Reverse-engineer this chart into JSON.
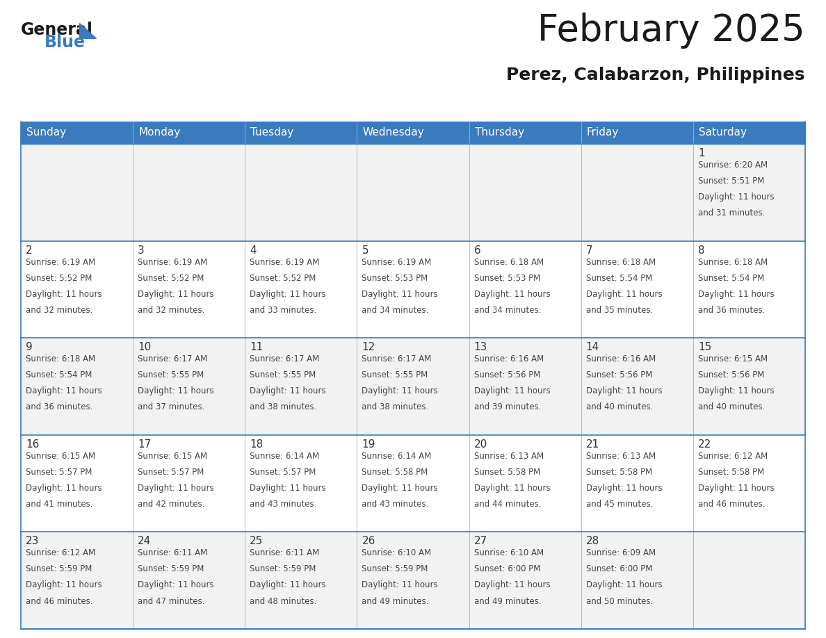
{
  "title": "February 2025",
  "subtitle": "Perez, Calabarzon, Philippines",
  "header_bg": "#3a7bbf",
  "header_text": "#ffffff",
  "day_names": [
    "Sunday",
    "Monday",
    "Tuesday",
    "Wednesday",
    "Thursday",
    "Friday",
    "Saturday"
  ],
  "row_bg_light": "#f2f2f2",
  "row_bg_white": "#ffffff",
  "border_color": "#3a7bbf",
  "cell_border_color": "#cccccc",
  "text_color": "#444444",
  "day_num_color": "#333333",
  "calendar_data": [
    [
      null,
      null,
      null,
      null,
      null,
      null,
      {
        "day": "1",
        "sunrise": "6:20 AM",
        "sunset": "5:51 PM",
        "daylight": "11 hours",
        "daylight2": "and 31 minutes."
      }
    ],
    [
      {
        "day": "2",
        "sunrise": "6:19 AM",
        "sunset": "5:52 PM",
        "daylight": "11 hours",
        "daylight2": "and 32 minutes."
      },
      {
        "day": "3",
        "sunrise": "6:19 AM",
        "sunset": "5:52 PM",
        "daylight": "11 hours",
        "daylight2": "and 32 minutes."
      },
      {
        "day": "4",
        "sunrise": "6:19 AM",
        "sunset": "5:52 PM",
        "daylight": "11 hours",
        "daylight2": "and 33 minutes."
      },
      {
        "day": "5",
        "sunrise": "6:19 AM",
        "sunset": "5:53 PM",
        "daylight": "11 hours",
        "daylight2": "and 34 minutes."
      },
      {
        "day": "6",
        "sunrise": "6:18 AM",
        "sunset": "5:53 PM",
        "daylight": "11 hours",
        "daylight2": "and 34 minutes."
      },
      {
        "day": "7",
        "sunrise": "6:18 AM",
        "sunset": "5:54 PM",
        "daylight": "11 hours",
        "daylight2": "and 35 minutes."
      },
      {
        "day": "8",
        "sunrise": "6:18 AM",
        "sunset": "5:54 PM",
        "daylight": "11 hours",
        "daylight2": "and 36 minutes."
      }
    ],
    [
      {
        "day": "9",
        "sunrise": "6:18 AM",
        "sunset": "5:54 PM",
        "daylight": "11 hours",
        "daylight2": "and 36 minutes."
      },
      {
        "day": "10",
        "sunrise": "6:17 AM",
        "sunset": "5:55 PM",
        "daylight": "11 hours",
        "daylight2": "and 37 minutes."
      },
      {
        "day": "11",
        "sunrise": "6:17 AM",
        "sunset": "5:55 PM",
        "daylight": "11 hours",
        "daylight2": "and 38 minutes."
      },
      {
        "day": "12",
        "sunrise": "6:17 AM",
        "sunset": "5:55 PM",
        "daylight": "11 hours",
        "daylight2": "and 38 minutes."
      },
      {
        "day": "13",
        "sunrise": "6:16 AM",
        "sunset": "5:56 PM",
        "daylight": "11 hours",
        "daylight2": "and 39 minutes."
      },
      {
        "day": "14",
        "sunrise": "6:16 AM",
        "sunset": "5:56 PM",
        "daylight": "11 hours",
        "daylight2": "and 40 minutes."
      },
      {
        "day": "15",
        "sunrise": "6:15 AM",
        "sunset": "5:56 PM",
        "daylight": "11 hours",
        "daylight2": "and 40 minutes."
      }
    ],
    [
      {
        "day": "16",
        "sunrise": "6:15 AM",
        "sunset": "5:57 PM",
        "daylight": "11 hours",
        "daylight2": "and 41 minutes."
      },
      {
        "day": "17",
        "sunrise": "6:15 AM",
        "sunset": "5:57 PM",
        "daylight": "11 hours",
        "daylight2": "and 42 minutes."
      },
      {
        "day": "18",
        "sunrise": "6:14 AM",
        "sunset": "5:57 PM",
        "daylight": "11 hours",
        "daylight2": "and 43 minutes."
      },
      {
        "day": "19",
        "sunrise": "6:14 AM",
        "sunset": "5:58 PM",
        "daylight": "11 hours",
        "daylight2": "and 43 minutes."
      },
      {
        "day": "20",
        "sunrise": "6:13 AM",
        "sunset": "5:58 PM",
        "daylight": "11 hours",
        "daylight2": "and 44 minutes."
      },
      {
        "day": "21",
        "sunrise": "6:13 AM",
        "sunset": "5:58 PM",
        "daylight": "11 hours",
        "daylight2": "and 45 minutes."
      },
      {
        "day": "22",
        "sunrise": "6:12 AM",
        "sunset": "5:58 PM",
        "daylight": "11 hours",
        "daylight2": "and 46 minutes."
      }
    ],
    [
      {
        "day": "23",
        "sunrise": "6:12 AM",
        "sunset": "5:59 PM",
        "daylight": "11 hours",
        "daylight2": "and 46 minutes."
      },
      {
        "day": "24",
        "sunrise": "6:11 AM",
        "sunset": "5:59 PM",
        "daylight": "11 hours",
        "daylight2": "and 47 minutes."
      },
      {
        "day": "25",
        "sunrise": "6:11 AM",
        "sunset": "5:59 PM",
        "daylight": "11 hours",
        "daylight2": "and 48 minutes."
      },
      {
        "day": "26",
        "sunrise": "6:10 AM",
        "sunset": "5:59 PM",
        "daylight": "11 hours",
        "daylight2": "and 49 minutes."
      },
      {
        "day": "27",
        "sunrise": "6:10 AM",
        "sunset": "6:00 PM",
        "daylight": "11 hours",
        "daylight2": "and 49 minutes."
      },
      {
        "day": "28",
        "sunrise": "6:09 AM",
        "sunset": "6:00 PM",
        "daylight": "11 hours",
        "daylight2": "and 50 minutes."
      },
      null
    ]
  ],
  "logo_general_color": "#1a1a1a",
  "logo_blue_color": "#3a7bbf",
  "logo_triangle_color": "#3a7bbf"
}
